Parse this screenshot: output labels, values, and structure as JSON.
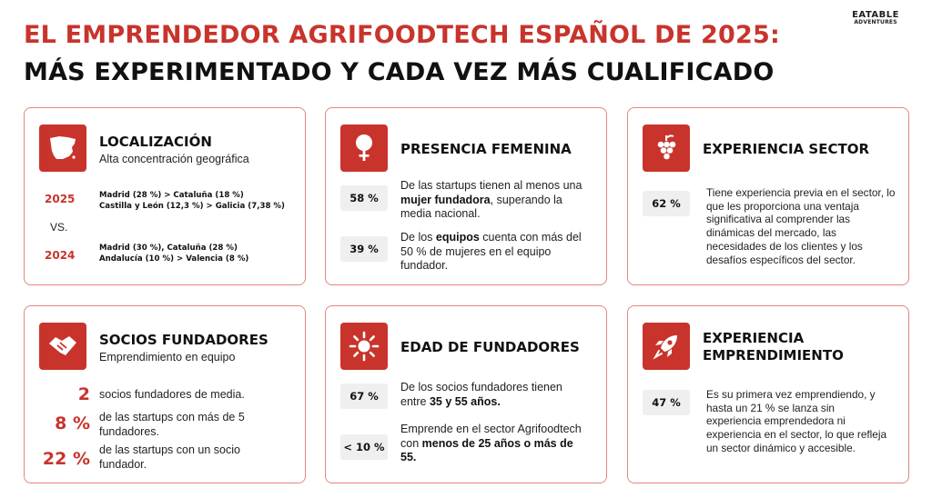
{
  "header": {
    "title_line1": "EL EMPRENDEDOR AGRIFOODTECH ESPAÑOL DE 2025:",
    "title_line2": "MÁS EXPERIMENTADO Y CADA VEZ MÁS CUALIFICADO",
    "logo_line1": "EATABLE",
    "logo_line2": "ADVENTURES"
  },
  "colors": {
    "accent": "#c8342c",
    "border": "#e2877b",
    "pill": "#efefef"
  },
  "localizacion": {
    "icon": "spain-map-icon",
    "title": "LOCALIZACIÓN",
    "subtitle": "Alta concentración geográfica",
    "year_2025": "2025",
    "line_2025_a": "Madrid (28 %) > Cataluña (18 %)",
    "line_2025_b": "Castilla y León (12,3 %) > Galicia (7,38 %)",
    "vs": "VS.",
    "year_2024": "2024",
    "line_2024_a": "Madrid (30 %), Cataluña (28 %)",
    "line_2024_b": "Andalucía (10 %) > Valencia (8 %)"
  },
  "presencia": {
    "icon": "female-symbol-icon",
    "title": "PRESENCIA FEMENINA",
    "stat1": "58 %",
    "desc1_pre": "De las startups tienen al menos una ",
    "desc1_bold": "mujer fundadora",
    "desc1_post": ", superando la media nacional.",
    "stat2": "39 %",
    "desc2_pre": "De los ",
    "desc2_bold": "equipos",
    "desc2_post": " cuenta con más del 50 % de mujeres en el equipo fundador."
  },
  "experiencia_sector": {
    "icon": "grapes-icon",
    "title": "EXPERIENCIA SECTOR",
    "stat": "62 %",
    "desc": "Tiene experiencia previa en el sector, lo que les proporciona una ventaja significativa al comprender las dinámicas del mercado, las necesidades de los clientes y los desafíos específicos del sector."
  },
  "socios": {
    "icon": "handshake-icon",
    "title": "SOCIOS FUNDADORES",
    "subtitle": "Emprendimiento en equipo",
    "n1": "2",
    "t1": "socios fundadores de media.",
    "n2": "8 %",
    "t2": "de las startups con más de 5 fundadores.",
    "n3": "22 %",
    "t3": "de las startups con un socio fundador."
  },
  "edad": {
    "icon": "sun-icon",
    "title": "EDAD DE FUNDADORES",
    "stat1": "67 %",
    "desc1_pre": "De los socios fundadores tienen entre ",
    "desc1_bold": "35 y 55 años.",
    "stat2": "< 10 %",
    "desc2_pre": "Emprende en el sector Agrifoodtech con ",
    "desc2_bold": "menos de 25 años o más de 55."
  },
  "emprendimiento": {
    "icon": "rocket-icon",
    "title_line1": "EXPERIENCIA",
    "title_line2": "EMPRENDIMIENTO",
    "stat": "47 %",
    "desc": "Es su primera vez emprendiendo, y hasta un 21 % se lanza sin experiencia emprendedora ni experiencia en el sector, lo que refleja un sector dinámico y accesible."
  }
}
